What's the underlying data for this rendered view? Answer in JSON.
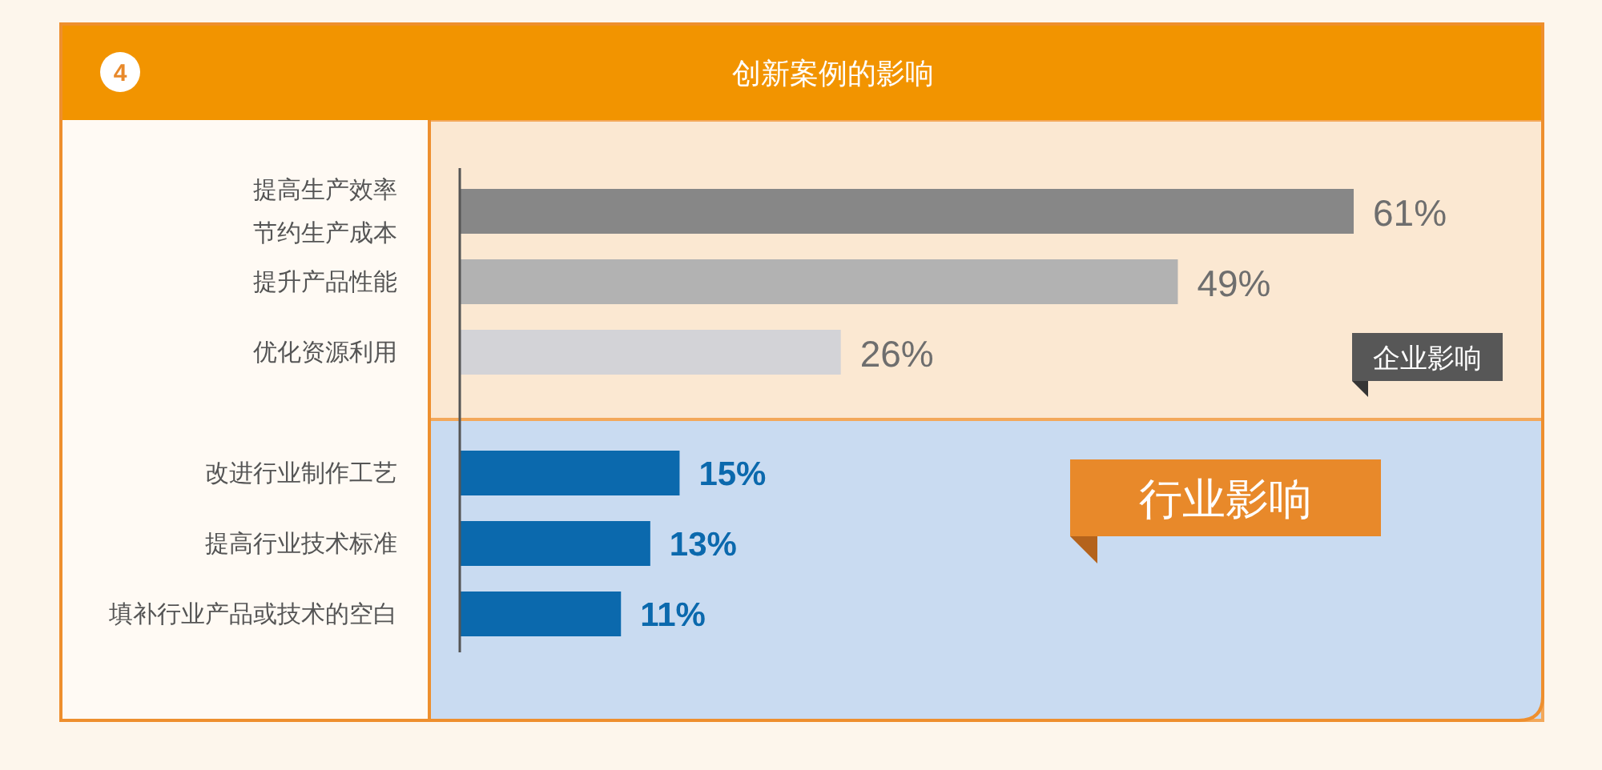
{
  "chart_data": {
    "type": "bar",
    "orientation": "horizontal",
    "title": "创新案例的影响",
    "annotations": [
      "4"
    ],
    "categories": [
      "提高生产效率节约生产成本",
      "提升产品性能",
      "优化资源利用",
      "改进行业制作工艺",
      "提高行业技术标准",
      "填补行业产品或技术的空白"
    ],
    "values": [
      61,
      49,
      26,
      15,
      13,
      11
    ],
    "colors": [
      "#878787",
      "#b2b2b2",
      "#d3d3d7",
      "#0b69ad",
      "#0b69ad",
      "#0b69ad"
    ],
    "value_labels": [
      "61%",
      "49%",
      "26%",
      "15%",
      "13%",
      "11%"
    ],
    "tick_labels": "y",
    "bands": [
      {
        "axis": "y",
        "from": "提高生产效率节约生产成本",
        "to": "优化资源利用",
        "label": "企业影响",
        "color": "#fbe8d2"
      },
      {
        "axis": "y",
        "from": "改进行业制作工艺",
        "to": "填补行业产品或技术的空白",
        "label": "行业影响",
        "color": "#c9dbf1"
      }
    ]
  }
}
